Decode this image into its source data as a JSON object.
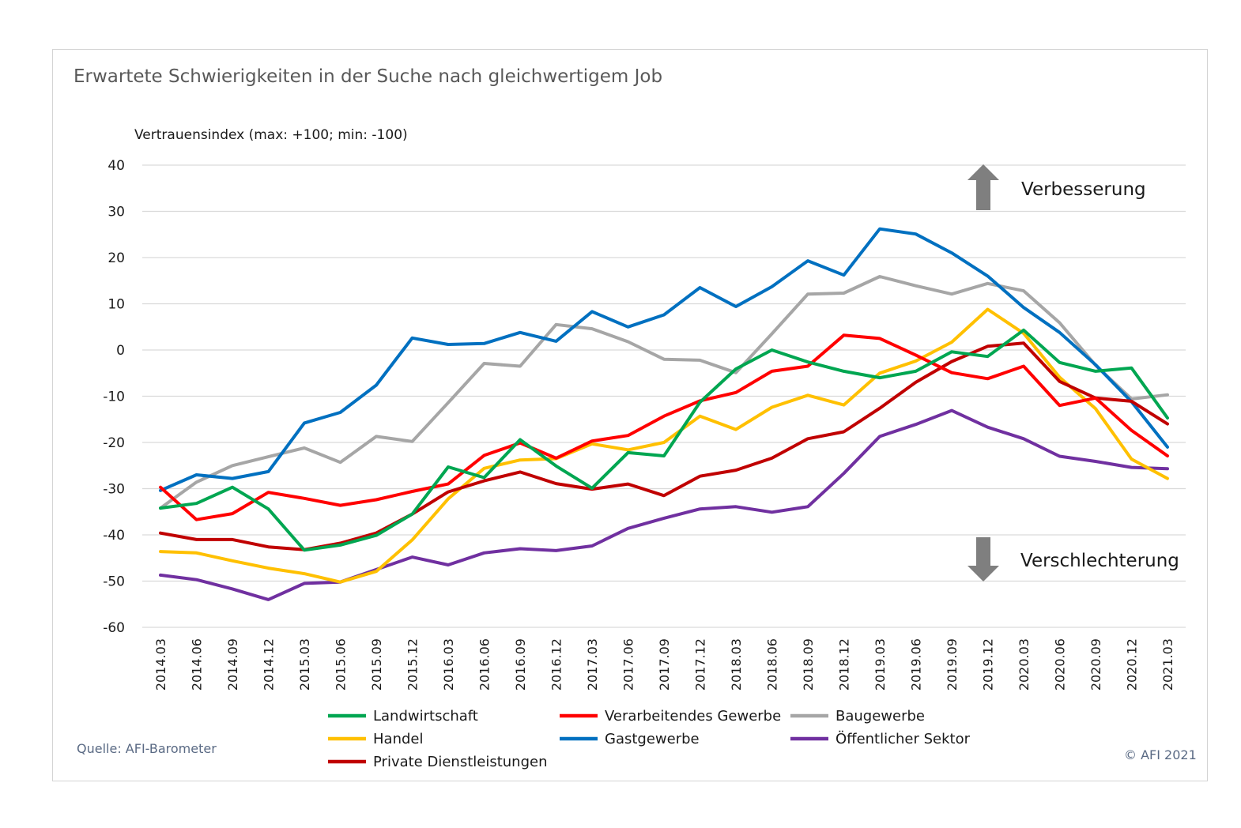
{
  "chart_data": {
    "type": "line",
    "title": "Erwartete Schwierigkeiten in der Suche nach gleichwertigem Job",
    "ylabel": "Vertrauensindex (max: +100; min: -100)",
    "ylim": [
      -60,
      40
    ],
    "yticks": [
      "40",
      "30",
      "20",
      "10",
      "0",
      "-10",
      "-20",
      "-30",
      "-40",
      "-50",
      "-60"
    ],
    "grid": true,
    "legend_position": "bottom",
    "categories": [
      "2014.03",
      "2014.06",
      "2014.09",
      "2014.12",
      "2015.03",
      "2015.06",
      "2015.09",
      "2015.12",
      "2016.03",
      "2016.06",
      "2016.09",
      "2016.12",
      "2017.03",
      "2017.06",
      "2017.09",
      "2017.12",
      "2018.03",
      "2018.06",
      "2018.09",
      "2018.12",
      "2019.03",
      "2019.06",
      "2019.09",
      "2019.12",
      "2020.03",
      "2020.06",
      "2020.09",
      "2020.12",
      "2021.03"
    ],
    "annotations": {
      "up": "Verbesserung",
      "down": "Verschlechterung"
    },
    "series": [
      {
        "name": "Landwirtschaft",
        "color": "#00a651",
        "values": [
          -34.2,
          -33.2,
          -29.7,
          -34.4,
          -43.3,
          -42.2,
          -40.1,
          -35.5,
          -25.3,
          -27.6,
          -19.4,
          -25.1,
          -29.9,
          -22.2,
          -22.9,
          -11.3,
          -4.1,
          0.0,
          -2.6,
          -4.6,
          -6.0,
          -4.6,
          -0.4,
          -1.4,
          4.3,
          -2.7,
          -4.6,
          -3.9,
          -14.7
        ]
      },
      {
        "name": "Verarbeitendes Gewerbe",
        "color": "#ff0000",
        "values": [
          -29.7,
          -36.7,
          -35.4,
          -30.8,
          -32.1,
          -33.6,
          -32.4,
          -30.6,
          -29.0,
          -22.8,
          -20.1,
          -23.4,
          -19.7,
          -18.5,
          -14.3,
          -11.0,
          -9.2,
          -4.6,
          -3.5,
          3.2,
          2.5,
          -1.1,
          -4.9,
          -6.2,
          -3.5,
          -12.0,
          -10.4,
          -17.4,
          -22.9
        ]
      },
      {
        "name": "Baugewerbe",
        "color": "#a6a6a6",
        "values": [
          -34.2,
          -28.6,
          -25.0,
          -23.1,
          -21.2,
          -24.3,
          -18.7,
          -19.8,
          -11.4,
          -2.9,
          -3.5,
          5.5,
          4.6,
          1.8,
          -2.0,
          -2.2,
          -4.9,
          3.5,
          12.1,
          12.3,
          15.9,
          13.9,
          12.1,
          14.4,
          12.8,
          5.9,
          -3.3,
          -10.6,
          -9.7
        ]
      },
      {
        "name": "Handel",
        "color": "#ffc000",
        "values": [
          -43.6,
          -43.9,
          -45.6,
          -47.2,
          -48.4,
          -50.2,
          -47.9,
          -41.1,
          -32.2,
          -25.6,
          -23.8,
          -23.5,
          -20.3,
          -21.6,
          -20.0,
          -14.3,
          -17.2,
          -12.4,
          -9.8,
          -11.9,
          -5.0,
          -2.4,
          1.7,
          8.8,
          3.6,
          -5.9,
          -12.7,
          -23.6,
          -27.8
        ]
      },
      {
        "name": "Gastgewerbe",
        "color": "#0070c0",
        "values": [
          -30.4,
          -27.0,
          -27.8,
          -26.3,
          -15.8,
          -13.5,
          -7.6,
          2.6,
          1.2,
          1.4,
          3.8,
          1.9,
          8.3,
          5.0,
          7.6,
          13.5,
          9.4,
          13.7,
          19.3,
          16.2,
          26.2,
          25.1,
          21.0,
          16.0,
          9.2,
          3.8,
          -3.2,
          -11.2,
          -21.0
        ]
      },
      {
        "name": "Öffentlicher Sektor",
        "color": "#7030a0",
        "values": [
          -48.7,
          -49.7,
          -51.7,
          -54.0,
          -50.5,
          -50.2,
          -47.5,
          -44.8,
          -46.5,
          -43.9,
          -43.0,
          -43.4,
          -42.4,
          -38.6,
          -36.4,
          -34.4,
          -33.9,
          -35.1,
          -33.9,
          -26.7,
          -18.7,
          -16.1,
          -13.1,
          -16.7,
          -19.2,
          -23.0,
          -24.1,
          -25.4,
          -25.7
        ]
      },
      {
        "name": "Private Dienstleistungen",
        "color": "#c00000",
        "values": [
          -39.6,
          -41.0,
          -41.0,
          -42.6,
          -43.2,
          -41.8,
          -39.6,
          -35.5,
          -30.7,
          -28.3,
          -26.4,
          -28.9,
          -30.1,
          -29.0,
          -31.5,
          -27.3,
          -26.0,
          -23.4,
          -19.2,
          -17.7,
          -12.6,
          -7.0,
          -2.5,
          0.8,
          1.5,
          -6.8,
          -10.4,
          -11.1,
          -16.0
        ]
      }
    ]
  },
  "footer": {
    "source": "Quelle: AFI-Barometer",
    "copyright": "© AFI 2021"
  }
}
